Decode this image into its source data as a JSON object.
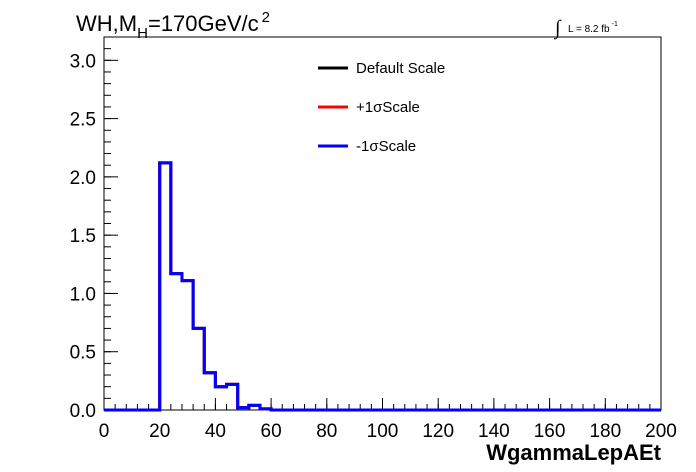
{
  "chart_data": {
    "type": "line",
    "title": "WH,M",
    "title_subscript": "H",
    "title_rest": "=170GeV/c",
    "title_superscript": "2",
    "luminosity_integral": "∫",
    "luminosity_text": "L = 8.2 fb",
    "luminosity_superscript": "-1",
    "xlabel": "WgammaLepAEt",
    "ylabel": "",
    "xlim": [
      0,
      200
    ],
    "ylim": [
      0,
      3.2
    ],
    "x_ticks": [
      "0",
      "20",
      "40",
      "60",
      "80",
      "100",
      "120",
      "140",
      "160",
      "180",
      "200"
    ],
    "y_ticks": [
      "0.0",
      "0.5",
      "1.0",
      "1.5",
      "2.0",
      "2.5",
      "3.0"
    ],
    "bin_edges": [
      0,
      4,
      8,
      12,
      16,
      20,
      24,
      28,
      32,
      36,
      40,
      44,
      48,
      52,
      56,
      60,
      64,
      68,
      72,
      76,
      80,
      84,
      88,
      92,
      96,
      100,
      104,
      108,
      112,
      116,
      120,
      124,
      128,
      132,
      136,
      140,
      144,
      148,
      152,
      156,
      160,
      164,
      168,
      172,
      176,
      180,
      184,
      188,
      192,
      196,
      200
    ],
    "series": [
      {
        "name": "Default Scale",
        "color": "#000000",
        "values": [
          0,
          0,
          0,
          0,
          0,
          2.12,
          1.17,
          1.11,
          0.7,
          0.32,
          0.2,
          0.22,
          0.02,
          0.04,
          0.01,
          0,
          0,
          0,
          0,
          0,
          0,
          0,
          0,
          0,
          0,
          0,
          0,
          0,
          0,
          0,
          0,
          0,
          0,
          0,
          0,
          0,
          0,
          0,
          0,
          0,
          0,
          0,
          0,
          0,
          0,
          0,
          0,
          0,
          0,
          0
        ]
      },
      {
        "name": "+1σScale",
        "color": "#ff0000",
        "values": [
          0,
          0,
          0,
          0,
          0,
          2.12,
          1.17,
          1.11,
          0.7,
          0.32,
          0.2,
          0.22,
          0.02,
          0.04,
          0.01,
          0,
          0,
          0,
          0,
          0,
          0,
          0,
          0,
          0,
          0,
          0,
          0,
          0,
          0,
          0,
          0,
          0,
          0,
          0,
          0,
          0,
          0,
          0,
          0,
          0,
          0,
          0,
          0,
          0,
          0,
          0,
          0,
          0,
          0,
          0
        ]
      },
      {
        "name": "-1σScale",
        "color": "#0000ff",
        "values": [
          0,
          0,
          0,
          0,
          0,
          2.12,
          1.17,
          1.11,
          0.7,
          0.32,
          0.2,
          0.22,
          0.02,
          0.04,
          0.01,
          0,
          0,
          0,
          0,
          0,
          0,
          0,
          0,
          0,
          0,
          0,
          0,
          0,
          0,
          0,
          0,
          0,
          0,
          0,
          0,
          0,
          0,
          0,
          0,
          0,
          0,
          0,
          0,
          0,
          0,
          0,
          0,
          0,
          0,
          0
        ]
      }
    ],
    "legend_position": "top-center",
    "grid": false
  }
}
